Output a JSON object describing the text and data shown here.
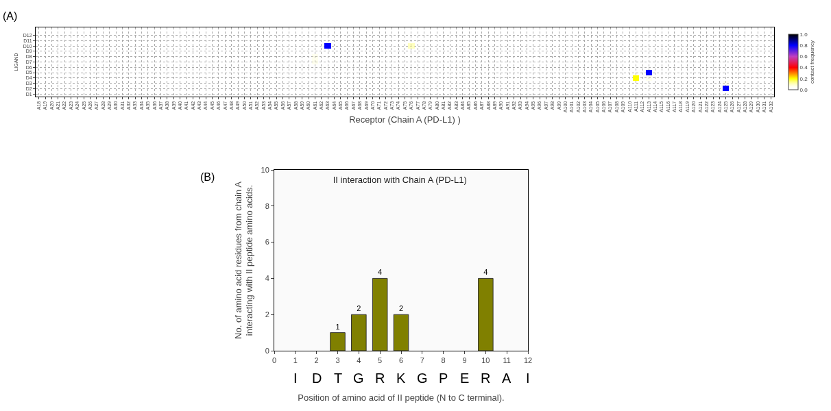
{
  "chart_data": [
    {
      "type": "heatmap",
      "xlabel": "Receptor (Chain A (PD-L1) )",
      "ylabel": "LIGAND",
      "clabel": "contact frequency",
      "annotations": [
        "(A)"
      ],
      "grid": true,
      "categories": [
        "A18",
        "A19",
        "A20",
        "A21",
        "A22",
        "A23",
        "A24",
        "A25",
        "A26",
        "A27",
        "A28",
        "A29",
        "A30",
        "A31",
        "A32",
        "A33",
        "A34",
        "A35",
        "A36",
        "A37",
        "A38",
        "A39",
        "A40",
        "A41",
        "A42",
        "A43",
        "A44",
        "A45",
        "A46",
        "A47",
        "A48",
        "A49",
        "A50",
        "A51",
        "A52",
        "A53",
        "A54",
        "A55",
        "A56",
        "A57",
        "A58",
        "A59",
        "A60",
        "A61",
        "A62",
        "A63",
        "A64",
        "A65",
        "A66",
        "A67",
        "A68",
        "A69",
        "A70",
        "A71",
        "A72",
        "A73",
        "A74",
        "A75",
        "A76",
        "A77",
        "A78",
        "A79",
        "A80",
        "A81",
        "A82",
        "A83",
        "A84",
        "A85",
        "A86",
        "A87",
        "A88",
        "A89",
        "A90",
        "A91",
        "A92",
        "A93",
        "A94",
        "A95",
        "A96",
        "A97",
        "A98",
        "A99",
        "A100",
        "A101",
        "A102",
        "A103",
        "A104",
        "A105",
        "A106",
        "A107",
        "A108",
        "A109",
        "A110",
        "A111",
        "A112",
        "A113",
        "A114",
        "A115",
        "A116",
        "A117",
        "A118",
        "A119",
        "A120",
        "A121",
        "A122",
        "A123",
        "A124",
        "A125",
        "A126",
        "A127",
        "A128",
        "A129",
        "A130",
        "A131",
        "A132"
      ],
      "y_categories": [
        "D12",
        "D11",
        "D10",
        "D9",
        "D8",
        "D7",
        "D6",
        "D5",
        "D4",
        "D3",
        "D2",
        "D1"
      ],
      "clim": [
        0,
        1
      ],
      "cticks": [
        {
          "value": 0,
          "label": "0.0"
        },
        {
          "value": 0.2,
          "label": "0.2"
        },
        {
          "value": 0.4,
          "label": "0.4"
        },
        {
          "value": 0.6,
          "label": "0.6"
        },
        {
          "value": 0.8,
          "label": "0.8"
        },
        {
          "value": 1,
          "label": "1.0"
        }
      ],
      "cells": [
        [
          0,
          0,
          0,
          0,
          0,
          0,
          0,
          0,
          0,
          0,
          0,
          0,
          0,
          0,
          0,
          0,
          0,
          0,
          0,
          0,
          0,
          0,
          0,
          0,
          0,
          0,
          0,
          0,
          0,
          0,
          0,
          0,
          0,
          0,
          0,
          0,
          0,
          0,
          0,
          0,
          0,
          0,
          0,
          0,
          0,
          0,
          0,
          0,
          0,
          0,
          0,
          0,
          0,
          0,
          0,
          0,
          0,
          0,
          0,
          0,
          0,
          0,
          0,
          0,
          0,
          0,
          0,
          0,
          0,
          0,
          0,
          0,
          0,
          0,
          0,
          0,
          0,
          0,
          0,
          0,
          0,
          0,
          0,
          0,
          0,
          0,
          0,
          0,
          0,
          0,
          0,
          0,
          0,
          0,
          0,
          0,
          0,
          0,
          0,
          0,
          0,
          0,
          0,
          0,
          0,
          0,
          0,
          0,
          0,
          0,
          0,
          0,
          0,
          0,
          0
        ],
        [
          0,
          0,
          0,
          0,
          0,
          0,
          0,
          0,
          0,
          0,
          0,
          0,
          0,
          0,
          0,
          0,
          0,
          0,
          0,
          0,
          0,
          0,
          0,
          0,
          0,
          0,
          0,
          0,
          0,
          0,
          0,
          0,
          0,
          0,
          0,
          0,
          0,
          0,
          0,
          0,
          0,
          0,
          0,
          0,
          0,
          0,
          0,
          0,
          0,
          0,
          0,
          0,
          0,
          0,
          0,
          0,
          0,
          0,
          0,
          0,
          0,
          0,
          0,
          0,
          0,
          0,
          0,
          0,
          0,
          0,
          0,
          0,
          0,
          0,
          0,
          0,
          0,
          0,
          0,
          0,
          0,
          0,
          0,
          0,
          0,
          0,
          0,
          0,
          0,
          0,
          0,
          0,
          0,
          0,
          0,
          0,
          0,
          0,
          0,
          0,
          0,
          0,
          0,
          0,
          0,
          0,
          0,
          0,
          0,
          0,
          0,
          0,
          0,
          0,
          0
        ],
        [
          0,
          0,
          0,
          0,
          0,
          0,
          0,
          0,
          0,
          0,
          0,
          0,
          0,
          0,
          0,
          0,
          0,
          0,
          0,
          0,
          0,
          0,
          0,
          0,
          0,
          0,
          0,
          0,
          0,
          0,
          0,
          0,
          0,
          0,
          0,
          0,
          0,
          0,
          0,
          0,
          0,
          0,
          0,
          0,
          0,
          0.8,
          0,
          0,
          0,
          0,
          0,
          0,
          0,
          0,
          0,
          0,
          0,
          0,
          0.1,
          0,
          0,
          0,
          0,
          0,
          0,
          0,
          0,
          0,
          0,
          0,
          0,
          0,
          0,
          0,
          0,
          0,
          0,
          0,
          0,
          0,
          0,
          0,
          0,
          0,
          0,
          0,
          0,
          0,
          0,
          0,
          0,
          0,
          0,
          0,
          0,
          0,
          0,
          0,
          0,
          0,
          0,
          0,
          0,
          0,
          0,
          0,
          0,
          0,
          0,
          0,
          0,
          0,
          0,
          0,
          0
        ],
        [
          0,
          0,
          0,
          0,
          0,
          0,
          0,
          0,
          0,
          0,
          0,
          0,
          0,
          0,
          0,
          0,
          0,
          0,
          0,
          0,
          0,
          0,
          0,
          0,
          0,
          0,
          0,
          0,
          0,
          0,
          0,
          0,
          0,
          0,
          0,
          0,
          0,
          0,
          0,
          0,
          0,
          0,
          0,
          0,
          0,
          0,
          0,
          0,
          0,
          0,
          0,
          0,
          0,
          0,
          0,
          0,
          0,
          0,
          0,
          0,
          0,
          0,
          0,
          0,
          0,
          0,
          0,
          0,
          0,
          0,
          0,
          0,
          0,
          0,
          0,
          0,
          0,
          0,
          0,
          0,
          0,
          0,
          0,
          0,
          0,
          0,
          0,
          0,
          0,
          0,
          0,
          0,
          0,
          0,
          0,
          0,
          0,
          0,
          0,
          0,
          0,
          0,
          0,
          0,
          0,
          0,
          0,
          0,
          0,
          0,
          0,
          0,
          0,
          0,
          0
        ],
        [
          0,
          0,
          0,
          0,
          0,
          0,
          0,
          0,
          0,
          0,
          0,
          0,
          0,
          0,
          0,
          0,
          0,
          0,
          0,
          0,
          0,
          0,
          0,
          0,
          0,
          0,
          0,
          0,
          0,
          0,
          0,
          0,
          0,
          0,
          0,
          0,
          0,
          0,
          0,
          0,
          0,
          0,
          0,
          0.05,
          0,
          0,
          0,
          0,
          0,
          0,
          0,
          0,
          0,
          0,
          0,
          0,
          0,
          0,
          0,
          0,
          0,
          0,
          0,
          0,
          0,
          0,
          0,
          0,
          0,
          0,
          0,
          0,
          0,
          0,
          0,
          0,
          0,
          0,
          0,
          0,
          0,
          0,
          0,
          0,
          0,
          0,
          0,
          0,
          0,
          0,
          0,
          0,
          0,
          0,
          0,
          0,
          0,
          0,
          0,
          0,
          0,
          0,
          0,
          0,
          0,
          0,
          0,
          0,
          0,
          0,
          0,
          0,
          0,
          0,
          0
        ],
        [
          0,
          0,
          0,
          0,
          0,
          0,
          0,
          0,
          0,
          0,
          0,
          0,
          0,
          0,
          0,
          0,
          0,
          0,
          0,
          0,
          0,
          0,
          0,
          0,
          0,
          0,
          0,
          0,
          0,
          0,
          0,
          0,
          0,
          0,
          0,
          0,
          0,
          0,
          0,
          0,
          0,
          0,
          0,
          0.05,
          0,
          0,
          0,
          0,
          0,
          0,
          0,
          0,
          0,
          0,
          0,
          0,
          0,
          0,
          0,
          0,
          0,
          0,
          0,
          0,
          0,
          0,
          0,
          0,
          0,
          0,
          0,
          0,
          0,
          0,
          0,
          0,
          0,
          0,
          0,
          0,
          0,
          0,
          0,
          0,
          0,
          0,
          0,
          0,
          0,
          0,
          0,
          0,
          0,
          0,
          0,
          0,
          0,
          0,
          0,
          0,
          0,
          0,
          0,
          0,
          0,
          0,
          0,
          0,
          0,
          0,
          0,
          0,
          0,
          0,
          0
        ],
        [
          0,
          0,
          0,
          0,
          0,
          0,
          0,
          0,
          0,
          0,
          0,
          0,
          0,
          0,
          0,
          0,
          0,
          0,
          0,
          0,
          0,
          0,
          0,
          0,
          0,
          0,
          0,
          0,
          0,
          0,
          0,
          0,
          0,
          0,
          0,
          0,
          0,
          0,
          0,
          0,
          0,
          0,
          0,
          0,
          0,
          0,
          0,
          0,
          0,
          0,
          0,
          0,
          0,
          0,
          0,
          0,
          0,
          0,
          0,
          0,
          0,
          0,
          0,
          0,
          0,
          0,
          0,
          0,
          0,
          0,
          0,
          0,
          0,
          0,
          0,
          0,
          0,
          0,
          0,
          0,
          0,
          0,
          0,
          0,
          0,
          0,
          0,
          0,
          0,
          0,
          0,
          0,
          0,
          0,
          0,
          0,
          0,
          0,
          0,
          0,
          0,
          0,
          0,
          0,
          0,
          0,
          0,
          0,
          0,
          0,
          0,
          0,
          0,
          0,
          0
        ],
        [
          0,
          0,
          0,
          0,
          0,
          0,
          0,
          0,
          0,
          0,
          0,
          0,
          0,
          0,
          0,
          0,
          0,
          0,
          0,
          0,
          0,
          0,
          0,
          0,
          0,
          0,
          0,
          0,
          0,
          0,
          0,
          0,
          0,
          0,
          0,
          0,
          0,
          0,
          0,
          0,
          0,
          0,
          0,
          0,
          0,
          0,
          0,
          0,
          0,
          0,
          0,
          0,
          0,
          0,
          0,
          0,
          0,
          0,
          0,
          0,
          0,
          0,
          0,
          0,
          0,
          0,
          0,
          0,
          0,
          0,
          0,
          0,
          0,
          0,
          0,
          0,
          0,
          0,
          0,
          0,
          0,
          0,
          0,
          0,
          0,
          0,
          0,
          0,
          0,
          0,
          0,
          0,
          0,
          0,
          0,
          0.8,
          0,
          0,
          0,
          0,
          0,
          0,
          0,
          0,
          0,
          0,
          0,
          0,
          0,
          0,
          0,
          0,
          0,
          0,
          0
        ],
        [
          0,
          0,
          0,
          0,
          0,
          0,
          0,
          0,
          0,
          0,
          0,
          0,
          0,
          0,
          0,
          0,
          0,
          0,
          0,
          0,
          0,
          0,
          0,
          0,
          0,
          0,
          0,
          0,
          0,
          0,
          0,
          0,
          0,
          0,
          0,
          0,
          0,
          0,
          0,
          0,
          0,
          0,
          0,
          0,
          0,
          0,
          0,
          0,
          0,
          0,
          0,
          0,
          0,
          0,
          0,
          0,
          0,
          0,
          0,
          0,
          0,
          0,
          0,
          0,
          0,
          0,
          0,
          0,
          0,
          0,
          0,
          0,
          0,
          0,
          0,
          0,
          0,
          0,
          0,
          0,
          0,
          0,
          0,
          0,
          0,
          0,
          0,
          0,
          0,
          0,
          0,
          0,
          0,
          0.2,
          0,
          0.05,
          0,
          0,
          0,
          0,
          0,
          0,
          0,
          0,
          0,
          0,
          0,
          0,
          0,
          0,
          0,
          0,
          0,
          0,
          0
        ],
        [
          0,
          0,
          0,
          0,
          0,
          0,
          0,
          0,
          0,
          0,
          0,
          0,
          0,
          0,
          0,
          0,
          0,
          0,
          0,
          0,
          0,
          0,
          0,
          0,
          0,
          0,
          0,
          0,
          0,
          0,
          0,
          0,
          0,
          0,
          0,
          0,
          0,
          0,
          0,
          0,
          0,
          0,
          0,
          0,
          0,
          0,
          0,
          0,
          0,
          0,
          0,
          0,
          0,
          0,
          0,
          0,
          0,
          0,
          0,
          0,
          0,
          0,
          0,
          0,
          0,
          0,
          0,
          0,
          0,
          0,
          0,
          0,
          0,
          0,
          0,
          0,
          0,
          0,
          0,
          0,
          0,
          0,
          0,
          0,
          0,
          0,
          0,
          0,
          0,
          0,
          0,
          0,
          0,
          0,
          0,
          0,
          0,
          0,
          0,
          0,
          0,
          0,
          0,
          0,
          0,
          0,
          0,
          0.05,
          0,
          0,
          0,
          0,
          0,
          0,
          0
        ],
        [
          0,
          0,
          0,
          0,
          0,
          0,
          0,
          0,
          0,
          0,
          0,
          0,
          0,
          0,
          0,
          0,
          0,
          0,
          0,
          0,
          0,
          0,
          0,
          0,
          0,
          0,
          0,
          0,
          0,
          0,
          0,
          0,
          0,
          0,
          0,
          0,
          0,
          0,
          0,
          0,
          0,
          0,
          0,
          0,
          0,
          0,
          0,
          0,
          0,
          0,
          0,
          0,
          0,
          0,
          0,
          0,
          0,
          0,
          0,
          0,
          0,
          0,
          0,
          0,
          0,
          0,
          0,
          0,
          0,
          0,
          0,
          0,
          0,
          0,
          0,
          0,
          0,
          0,
          0,
          0,
          0,
          0,
          0,
          0,
          0,
          0,
          0,
          0,
          0,
          0,
          0,
          0,
          0,
          0,
          0,
          0,
          0,
          0,
          0,
          0,
          0,
          0,
          0,
          0,
          0,
          0,
          0,
          0.8,
          0,
          0,
          0,
          0,
          0,
          0,
          0
        ],
        [
          0,
          0,
          0,
          0,
          0,
          0,
          0,
          0,
          0,
          0,
          0,
          0,
          0,
          0,
          0,
          0,
          0,
          0,
          0,
          0,
          0,
          0,
          0,
          0,
          0,
          0,
          0,
          0,
          0,
          0,
          0,
          0,
          0,
          0,
          0,
          0,
          0,
          0,
          0,
          0,
          0,
          0,
          0,
          0,
          0,
          0,
          0,
          0,
          0,
          0,
          0,
          0,
          0,
          0,
          0,
          0,
          0,
          0,
          0,
          0,
          0,
          0,
          0,
          0,
          0,
          0,
          0,
          0,
          0,
          0,
          0,
          0,
          0,
          0,
          0,
          0,
          0,
          0,
          0,
          0,
          0,
          0,
          0,
          0,
          0,
          0,
          0,
          0,
          0,
          0,
          0,
          0,
          0,
          0,
          0,
          0,
          0,
          0,
          0,
          0,
          0,
          0,
          0,
          0,
          0,
          0,
          0,
          0,
          0,
          0,
          0,
          0,
          0,
          0,
          0
        ]
      ]
    },
    {
      "type": "bar",
      "title": "II interaction with Chain A (PD-L1)",
      "xlabel": "Position of amino acid of II peptide (N to C terminal).",
      "ylabel": "No. of amino acid residues from chain A\ninteracting with II peptide amino acids.",
      "annotations": [
        "(B)",
        "I",
        "D",
        "T",
        "G",
        "R",
        "K",
        "G",
        "P",
        "E",
        "R",
        "A",
        "I"
      ],
      "x": [
        3,
        4,
        5,
        6,
        10
      ],
      "values": [
        1,
        2,
        4,
        2,
        4
      ],
      "color": "#808000",
      "data_labels": true,
      "grid": false,
      "xlim": [
        0,
        12
      ],
      "xticks": [
        0,
        1,
        2,
        3,
        4,
        5,
        6,
        7,
        8,
        9,
        10,
        11,
        12
      ],
      "ylim": [
        0,
        10
      ],
      "yticks": [
        0,
        2,
        4,
        6,
        8,
        10
      ]
    }
  ]
}
